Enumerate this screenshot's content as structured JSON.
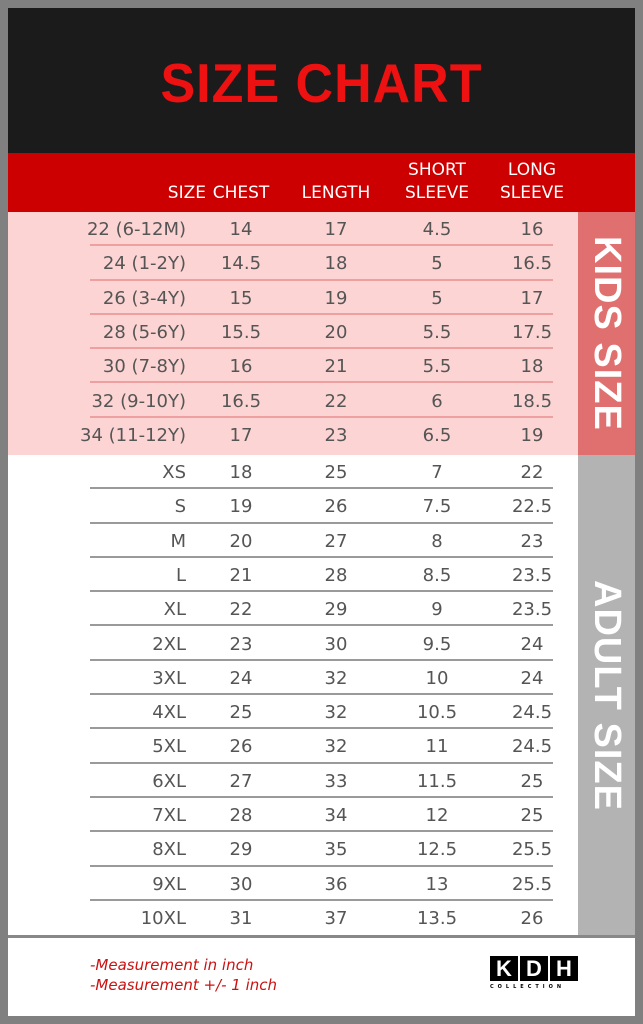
{
  "title": "SIZE CHART",
  "headers": {
    "size": "SIZE",
    "chest": "CHEST",
    "length": "LENGTH",
    "short1": "SHORT",
    "short2": "SLEEVE",
    "long1": "LONG",
    "long2": "SLEEVE"
  },
  "kids_label": "KIDS SIZE",
  "adult_label": "ADULT SIZE",
  "kids": [
    [
      "22 (6-12M)",
      "14",
      "17",
      "4.5",
      "16"
    ],
    [
      "24 (1-2Y)",
      "14.5",
      "18",
      "5",
      "16.5"
    ],
    [
      "26 (3-4Y)",
      "15",
      "19",
      "5",
      "17"
    ],
    [
      "28 (5-6Y)",
      "15.5",
      "20",
      "5.5",
      "17.5"
    ],
    [
      "30 (7-8Y)",
      "16",
      "21",
      "5.5",
      "18"
    ],
    [
      "32 (9-10Y)",
      "16.5",
      "22",
      "6",
      "18.5"
    ],
    [
      "34 (11-12Y)",
      "17",
      "23",
      "6.5",
      "19"
    ]
  ],
  "adult": [
    [
      "XS",
      "18",
      "25",
      "7",
      "22"
    ],
    [
      "S",
      "19",
      "26",
      "7.5",
      "22.5"
    ],
    [
      "M",
      "20",
      "27",
      "8",
      "23"
    ],
    [
      "L",
      "21",
      "28",
      "8.5",
      "23.5"
    ],
    [
      "XL",
      "22",
      "29",
      "9",
      "23.5"
    ],
    [
      "2XL",
      "23",
      "30",
      "9.5",
      "24"
    ],
    [
      "3XL",
      "24",
      "32",
      "10",
      "24"
    ],
    [
      "4XL",
      "25",
      "32",
      "10.5",
      "24.5"
    ],
    [
      "5XL",
      "26",
      "32",
      "11",
      "24.5"
    ],
    [
      "6XL",
      "27",
      "33",
      "11.5",
      "25"
    ],
    [
      "7XL",
      "28",
      "34",
      "12",
      "25"
    ],
    [
      "8XL",
      "29",
      "35",
      "12.5",
      "25.5"
    ],
    [
      "9XL",
      "30",
      "36",
      "13",
      "25.5"
    ],
    [
      "10XL",
      "31",
      "37",
      "13.5",
      "26"
    ]
  ],
  "notes": [
    "-Measurement in inch",
    "-Measurement +/- 1 inch"
  ],
  "logo": {
    "letters": [
      "K",
      "D",
      "H"
    ],
    "sub": "COLLECTION"
  },
  "colors": {
    "title": "#ee1111",
    "header": "#cc0000",
    "kids_bg": "#fdd4d4",
    "kids_band": "#e07070",
    "adult_band": "#b3b3b3",
    "note": "#cc1111"
  }
}
